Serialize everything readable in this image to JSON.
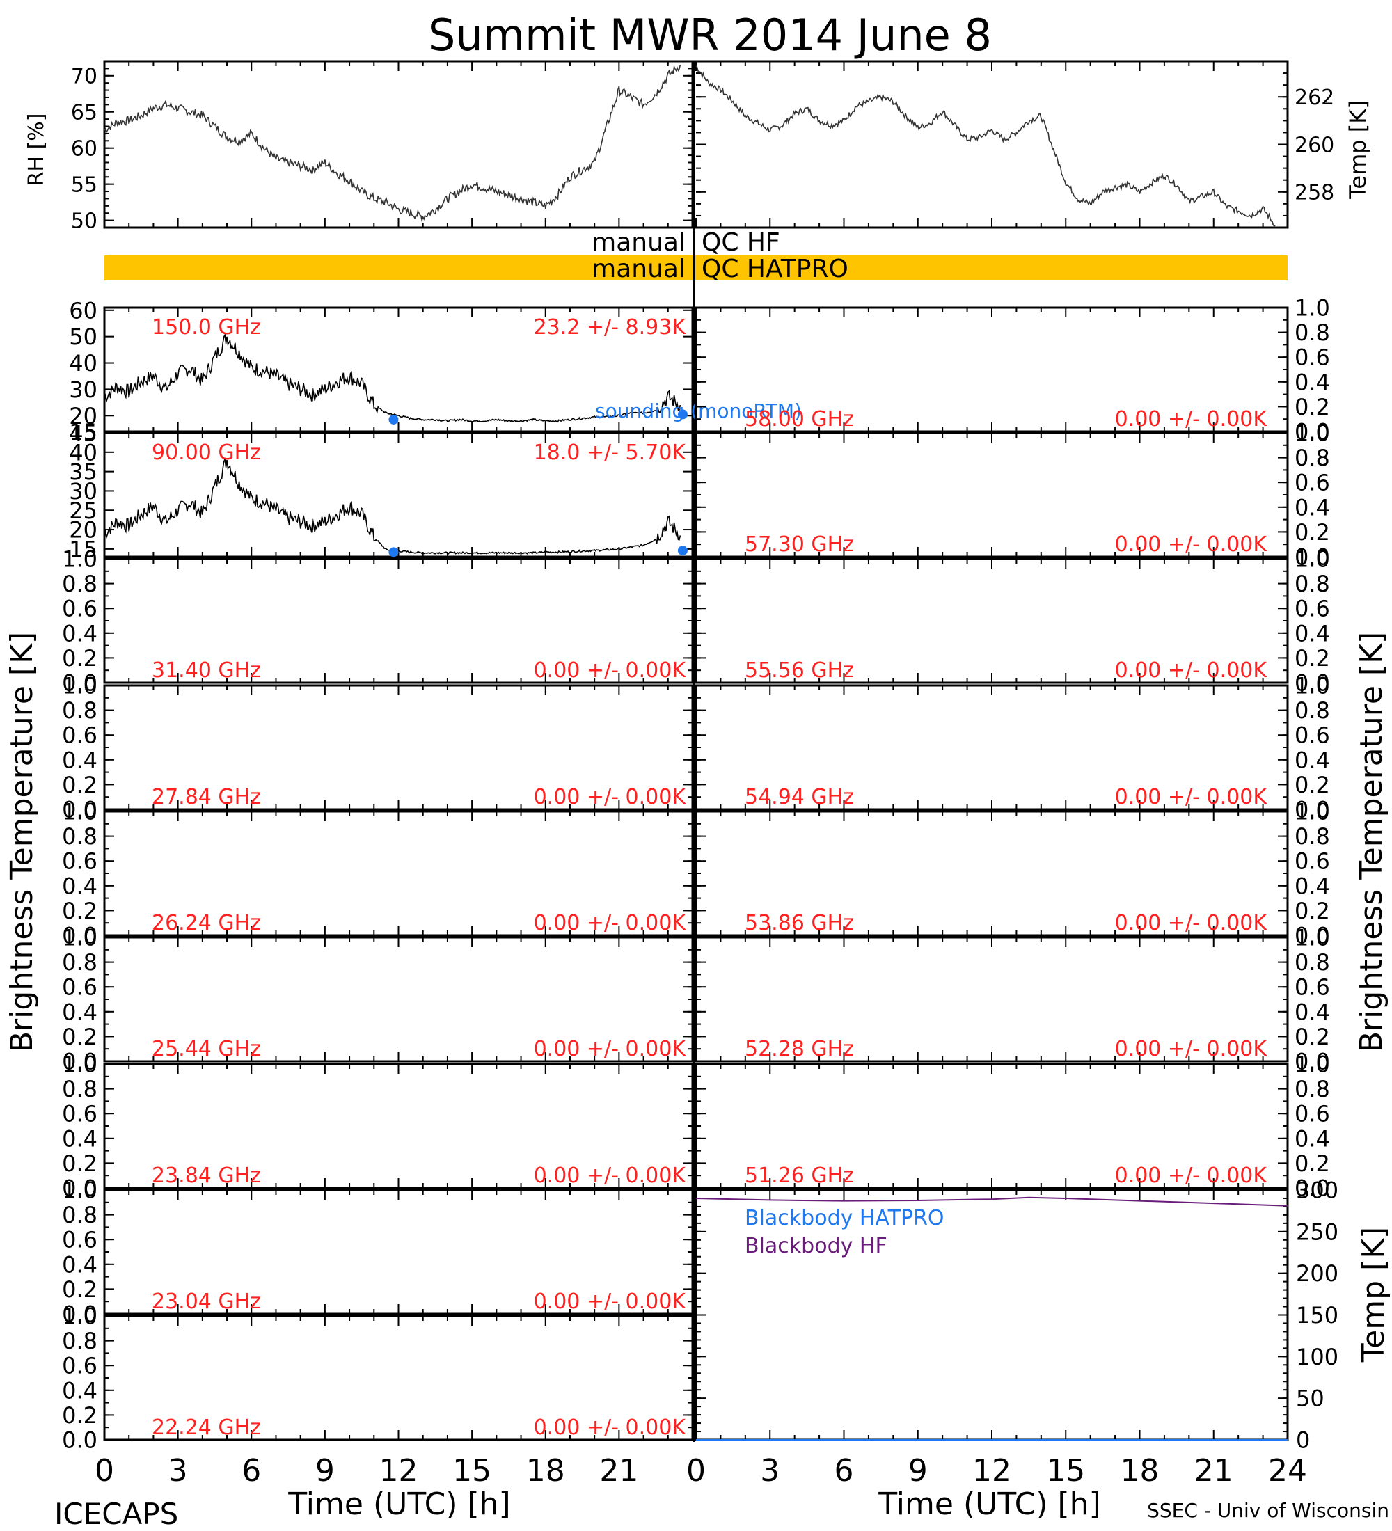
{
  "title": "Summit MWR 2014 June  8",
  "footer": {
    "left": "ICECAPS",
    "right": "SSEC - Univ of Wisconsin",
    "xlabel": "Time (UTC) [h]"
  },
  "colors": {
    "qc_bar": "#FFC400",
    "channel_label": "#FF2020",
    "sounding": "#1E78F0",
    "bb_hatpro": "#1E78F0",
    "bb_hf": "#6A1C7A",
    "trace": "#000000"
  },
  "qc": {
    "hf_label": "manual  QC  HF",
    "hf_left": "manual",
    "hf_right": "QC HF",
    "hatpro_left": "manual",
    "hatpro_right": "QC HATPRO"
  },
  "axes": {
    "rh_label": "RH [%]",
    "temp_label": "Temp [K]",
    "tb_label": "Brightness Temperature [K]",
    "bb_temp_label": "Temp [K]",
    "x_ticks": [
      "0",
      "3",
      "6",
      "9",
      "12",
      "15",
      "18",
      "21"
    ],
    "x_ticks_right": [
      "0",
      "3",
      "6",
      "9",
      "12",
      "15",
      "18",
      "21",
      "24"
    ]
  },
  "chart_data": [
    {
      "id": "met-rh",
      "type": "line",
      "ylabel": "RH [%]",
      "ylim": [
        49,
        72
      ],
      "yticks": [
        50,
        55,
        60,
        65,
        70
      ],
      "xlim": [
        0,
        24
      ],
      "x": [
        0,
        0.5,
        1,
        1.5,
        2,
        2.5,
        3,
        3.5,
        4,
        4.5,
        5,
        5.5,
        6,
        6.5,
        7,
        7.5,
        8,
        8.5,
        9,
        9.5,
        10,
        10.5,
        11,
        11.5,
        12,
        12.5,
        13,
        13.5,
        14,
        14.5,
        15,
        15.5,
        16,
        16.5,
        17,
        17.5,
        18,
        18.5,
        19,
        19.5,
        20,
        20.5,
        21,
        21.5,
        22,
        22.5,
        23,
        23.5
      ],
      "values": [
        62.5,
        63.5,
        63.8,
        64.5,
        65.5,
        66,
        65.5,
        65,
        64.5,
        63,
        61.5,
        61,
        62,
        60,
        58.5,
        58,
        57.5,
        57,
        58,
        56.5,
        55.5,
        54,
        53,
        52.5,
        51.5,
        51,
        50.5,
        51.5,
        53,
        54,
        55,
        54.5,
        54,
        53.5,
        53,
        52.5,
        52,
        53.5,
        56,
        57,
        58,
        63,
        68,
        67,
        66,
        67.5,
        70,
        71.5
      ]
    },
    {
      "id": "met-temp",
      "type": "line",
      "ylabel": "Temp [K]",
      "ylim": [
        256.5,
        263.5
      ],
      "yticks": [
        258,
        260,
        262
      ],
      "xlim": [
        0,
        24
      ],
      "x": [
        0,
        0.5,
        1,
        1.5,
        2,
        2.5,
        3,
        3.5,
        4,
        4.5,
        5,
        5.5,
        6,
        6.5,
        7,
        7.5,
        8,
        8.5,
        9,
        9.5,
        10,
        10.5,
        11,
        11.5,
        12,
        12.5,
        13,
        13.5,
        14,
        14.5,
        15,
        15.5,
        16,
        16.5,
        17,
        17.5,
        18,
        18.5,
        19,
        19.5,
        20,
        20.5,
        21,
        21.5,
        22,
        22.5,
        23,
        23.5
      ],
      "values": [
        263.3,
        262.6,
        262.3,
        261.8,
        261.2,
        260.9,
        260.6,
        260.8,
        261.3,
        261.5,
        261.0,
        260.8,
        261.0,
        261.6,
        261.8,
        262.0,
        261.8,
        261.2,
        260.7,
        260.9,
        261.4,
        260.8,
        260.2,
        260.3,
        260.6,
        260.2,
        260.5,
        261.0,
        261.2,
        259.8,
        258.4,
        257.7,
        257.5,
        258.0,
        258.2,
        258.3,
        258.0,
        258.4,
        258.7,
        258.3,
        257.6,
        257.8,
        258.0,
        257.4,
        257.2,
        257.0,
        257.3,
        256.6
      ]
    },
    {
      "id": "tb-150",
      "type": "line",
      "label": "150.0 GHz",
      "stats": "23.2 +/-  8.93K",
      "ylim": [
        14,
        61
      ],
      "yticks": [
        20,
        30,
        40,
        50,
        60
      ],
      "bottom_tick_label": "15",
      "xlim": [
        0,
        24
      ],
      "x": [
        0,
        0.5,
        1,
        1.5,
        2,
        2.5,
        3,
        3.5,
        4,
        4.5,
        5,
        5.5,
        6,
        6.5,
        7,
        7.5,
        8,
        8.5,
        9,
        9.5,
        10,
        10.5,
        11,
        11.5,
        12,
        12.5,
        13,
        13.5,
        14,
        14.5,
        15,
        15.5,
        16,
        16.5,
        17,
        17.5,
        18,
        18.5,
        19,
        19.5,
        20,
        20.5,
        21,
        21.5,
        22,
        22.5,
        23,
        23.5
      ],
      "values": [
        27,
        31,
        29,
        33,
        35,
        30,
        36,
        38,
        33,
        42,
        50,
        44,
        38,
        37,
        35,
        32,
        30,
        28,
        30,
        33,
        35,
        32,
        24,
        21,
        20,
        19,
        18.5,
        18.5,
        18,
        18.5,
        18,
        18,
        18.5,
        18,
        18,
        18.5,
        18,
        18,
        18.5,
        19,
        19.5,
        19.5,
        20,
        21,
        21,
        22,
        27,
        24
      ],
      "sounding_x": [
        11.8,
        23.6
      ],
      "sounding_y": [
        18.5,
        20.5
      ],
      "sounding_label": "sounding (monoRTM)"
    },
    {
      "id": "tb-90",
      "type": "line",
      "label": "90.00 GHz",
      "stats": "18.0 +/-  5.70K",
      "ylim": [
        13,
        45
      ],
      "yticks": [
        15,
        20,
        25,
        30,
        35,
        40,
        45
      ],
      "xlim": [
        0,
        24
      ],
      "x": [
        0,
        0.5,
        1,
        1.5,
        2,
        2.5,
        3,
        3.5,
        4,
        4.5,
        5,
        5.5,
        6,
        6.5,
        7,
        7.5,
        8,
        8.5,
        9,
        9.5,
        10,
        10.5,
        11,
        11.5,
        12,
        12.5,
        13,
        13.5,
        14,
        14.5,
        15,
        15.5,
        16,
        16.5,
        17,
        17.5,
        18,
        18.5,
        19,
        19.5,
        20,
        20.5,
        21,
        21.5,
        22,
        22.5,
        23,
        23.5
      ],
      "values": [
        19,
        22,
        21,
        24,
        26,
        22,
        25,
        27,
        24,
        31,
        38,
        32,
        28,
        27,
        25,
        23,
        22,
        21,
        22,
        24,
        26,
        24,
        18,
        14.8,
        14.5,
        14.2,
        14,
        14,
        14,
        14,
        14,
        14,
        14,
        14,
        14,
        14,
        14.2,
        14.2,
        14.3,
        14.5,
        14.6,
        14.8,
        15,
        15.5,
        16,
        17.5,
        22,
        18.5
      ],
      "sounding_x": [
        11.8,
        23.6
      ],
      "sounding_y": [
        14.2,
        14.6
      ]
    },
    {
      "id": "tb-31.40",
      "type": "line",
      "label": "31.40 GHz",
      "stats": "0.00 +/-  0.00K",
      "ylim": [
        0,
        1
      ]
    },
    {
      "id": "tb-27.84",
      "type": "line",
      "label": "27.84 GHz",
      "stats": "0.00 +/-  0.00K",
      "ylim": [
        0,
        1
      ]
    },
    {
      "id": "tb-26.24",
      "type": "line",
      "label": "26.24 GHz",
      "stats": "0.00 +/-  0.00K",
      "ylim": [
        0,
        1
      ]
    },
    {
      "id": "tb-25.44",
      "type": "line",
      "label": "25.44 GHz",
      "stats": "0.00 +/-  0.00K",
      "ylim": [
        0,
        1
      ]
    },
    {
      "id": "tb-23.84",
      "type": "line",
      "label": "23.84 GHz",
      "stats": "0.00 +/-  0.00K",
      "ylim": [
        0,
        1
      ]
    },
    {
      "id": "tb-23.04",
      "type": "line",
      "label": "23.04 GHz",
      "stats": "0.00 +/-  0.00K",
      "ylim": [
        0,
        1
      ]
    },
    {
      "id": "tb-22.24",
      "type": "line",
      "label": "22.24 GHz",
      "stats": "0.00 +/-  0.00K",
      "ylim": [
        0,
        1
      ]
    },
    {
      "id": "tb-58.00",
      "type": "line",
      "label": "58.00 GHz",
      "stats": "0.00 +/-  0.00K",
      "ylim": [
        0,
        1
      ]
    },
    {
      "id": "tb-57.30",
      "type": "line",
      "label": "57.30 GHz",
      "stats": "0.00 +/-  0.00K",
      "ylim": [
        0,
        1
      ]
    },
    {
      "id": "tb-55.56",
      "type": "line",
      "label": "55.56 GHz",
      "stats": "0.00 +/-  0.00K",
      "ylim": [
        0,
        1
      ]
    },
    {
      "id": "tb-54.94",
      "type": "line",
      "label": "54.94 GHz",
      "stats": "0.00 +/-  0.00K",
      "ylim": [
        0,
        1
      ]
    },
    {
      "id": "tb-53.86",
      "type": "line",
      "label": "53.86 GHz",
      "stats": "0.00 +/-  0.00K",
      "ylim": [
        0,
        1
      ]
    },
    {
      "id": "tb-52.28",
      "type": "line",
      "label": "52.28 GHz",
      "stats": "0.00 +/-  0.00K",
      "ylim": [
        0,
        1
      ]
    },
    {
      "id": "tb-51.26",
      "type": "line",
      "label": "51.26 GHz",
      "stats": "0.00 +/-  0.00K",
      "ylim": [
        0,
        1
      ]
    },
    {
      "id": "blackbody",
      "type": "line",
      "ylabel": "Temp [K]",
      "ylim": [
        0,
        300
      ],
      "yticks": [
        0,
        50,
        100,
        150,
        200,
        250,
        300
      ],
      "xlim": [
        0,
        24
      ],
      "series": [
        {
          "name": "Blackbody HATPRO",
          "x": [
            0,
            24
          ],
          "values": [
            0,
            0
          ]
        },
        {
          "name": "Blackbody HF",
          "x": [
            0,
            3,
            6,
            9,
            12,
            13.5,
            15,
            18,
            21,
            24
          ],
          "values": [
            290,
            288,
            287,
            287.5,
            289,
            291,
            290,
            287,
            284,
            281
          ]
        }
      ]
    }
  ]
}
